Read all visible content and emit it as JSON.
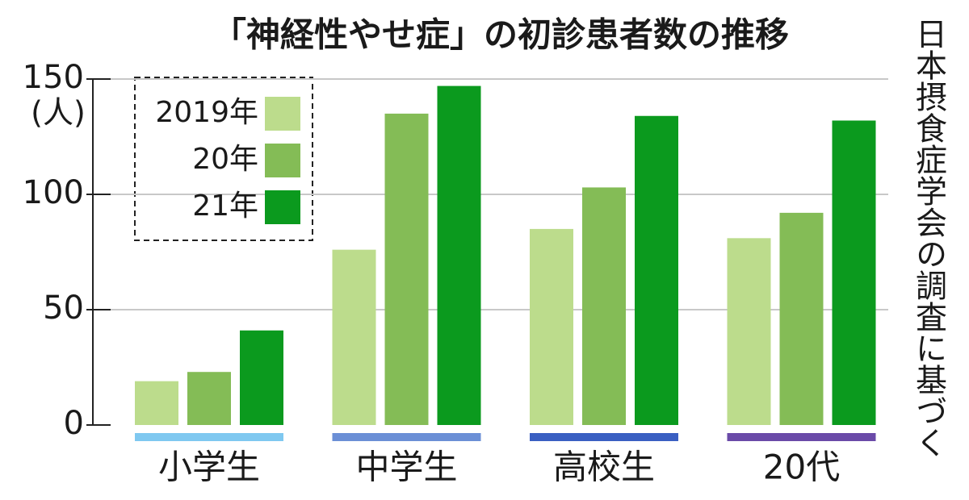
{
  "chart_data": {
    "type": "bar",
    "title": "「神経性やせ症」の初診患者数の推移",
    "y_label": "(人)",
    "source": "日本摂食症学会の調査に基づく",
    "categories": [
      "小学生",
      "中学生",
      "高校生",
      "20代"
    ],
    "category_colors": [
      "#7fc8f0",
      "#6b8fd6",
      "#3a5fc2",
      "#6a4aa8"
    ],
    "series": [
      {
        "name": "2019年",
        "color": "#bcdc8c",
        "values": [
          19,
          76,
          85,
          81
        ]
      },
      {
        "name": "20年",
        "color": "#84bc56",
        "values": [
          23,
          135,
          103,
          92
        ]
      },
      {
        "name": "21年",
        "color": "#0b9a1e",
        "values": [
          41,
          147,
          134,
          132
        ]
      }
    ],
    "ylim": [
      0,
      150
    ],
    "yticks": [
      0,
      50,
      100,
      150
    ],
    "grid": true,
    "legend": "upper left"
  }
}
